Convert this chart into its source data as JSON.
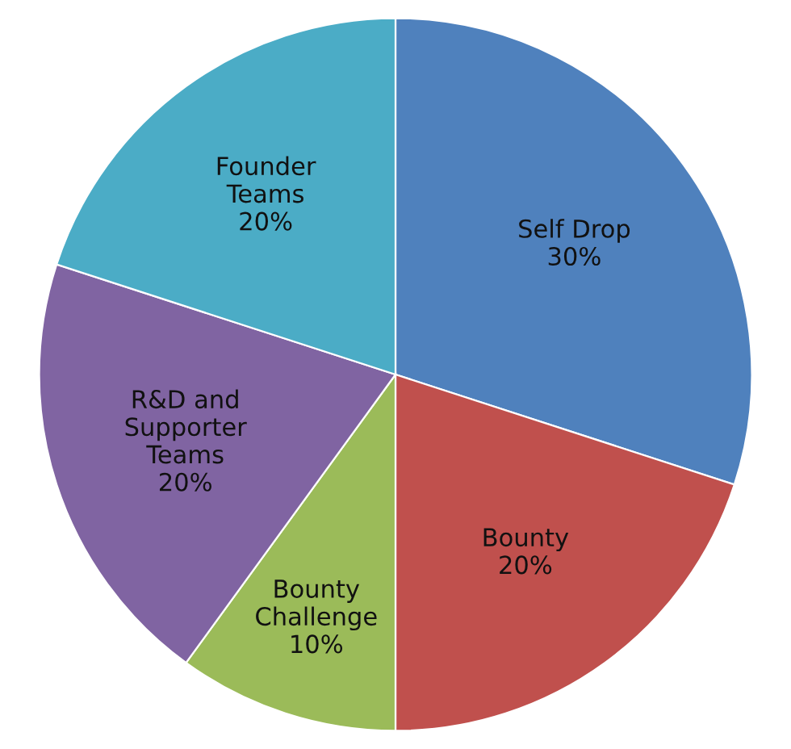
{
  "chart_data": {
    "type": "pie",
    "categories": [
      "Self Drop",
      "Bounty",
      "Bounty Challenge",
      "R&D and Supporter Teams",
      "Founder Teams"
    ],
    "values": [
      30,
      20,
      10,
      20,
      20
    ],
    "value_labels": [
      "30%",
      "20%",
      "10%",
      "20%",
      "20%"
    ],
    "colors": [
      "#4f81bd",
      "#c0504d",
      "#9bbb59",
      "#8064a2",
      "#4bacc6"
    ],
    "legend": false
  }
}
